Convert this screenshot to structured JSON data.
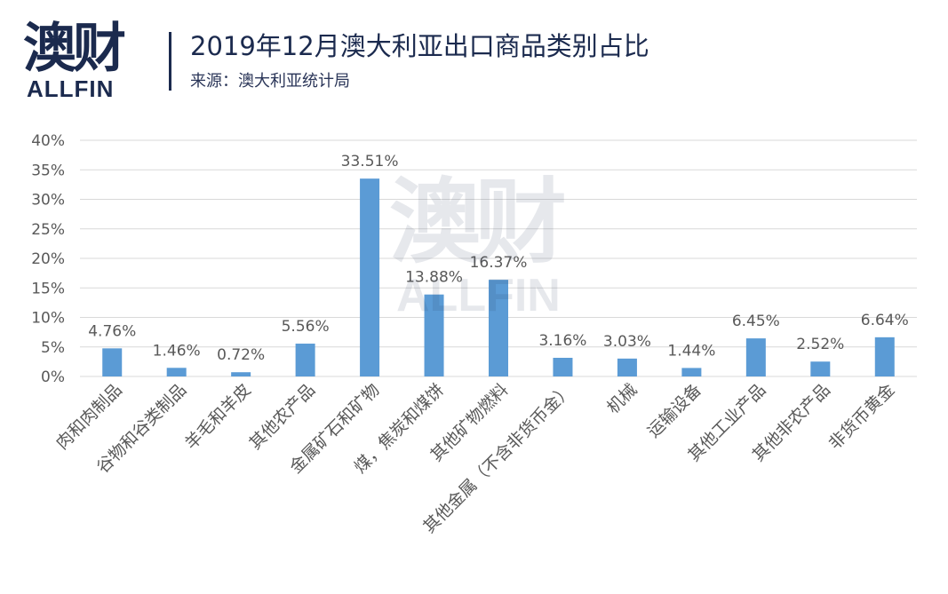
{
  "brand": {
    "logo_cn": "澳财",
    "logo_en": "ALLFIN"
  },
  "header": {
    "title": "2019年12月澳大利亚出口商品类别占比",
    "source": "来源：澳大利亚统计局"
  },
  "colors": {
    "bar": "#5b9bd5",
    "grid": "#d9d9d9",
    "text": "#595959",
    "brand": "#1b2a4e"
  },
  "chart_data": {
    "type": "bar",
    "title": "",
    "xlabel": "",
    "ylabel": "",
    "ylim": [
      0,
      40
    ],
    "y_ticks": [
      "0%",
      "5%",
      "10%",
      "15%",
      "20%",
      "25%",
      "30%",
      "35%",
      "40%"
    ],
    "grid": true,
    "legend": "none",
    "categories": [
      "肉和肉制品",
      "谷物和谷类制品",
      "羊毛和羊皮",
      "其他农产品",
      "金属矿石和矿物",
      "煤，焦炭和煤饼",
      "其他矿物燃料",
      "其他金属（不含非货币金）",
      "机械",
      "运输设备",
      "其他工业产品",
      "其他非农产品",
      "非货币黄金"
    ],
    "values": [
      4.76,
      1.46,
      0.72,
      5.56,
      33.51,
      13.88,
      16.37,
      3.16,
      3.03,
      1.44,
      6.45,
      2.52,
      6.64
    ],
    "labels": [
      "4.76%",
      "1.46%",
      "0.72%",
      "5.56%",
      "33.51%",
      "13.88%",
      "16.37%",
      "3.16%",
      "3.03%",
      "1.44%",
      "6.45%",
      "2.52%",
      "6.64%"
    ]
  }
}
